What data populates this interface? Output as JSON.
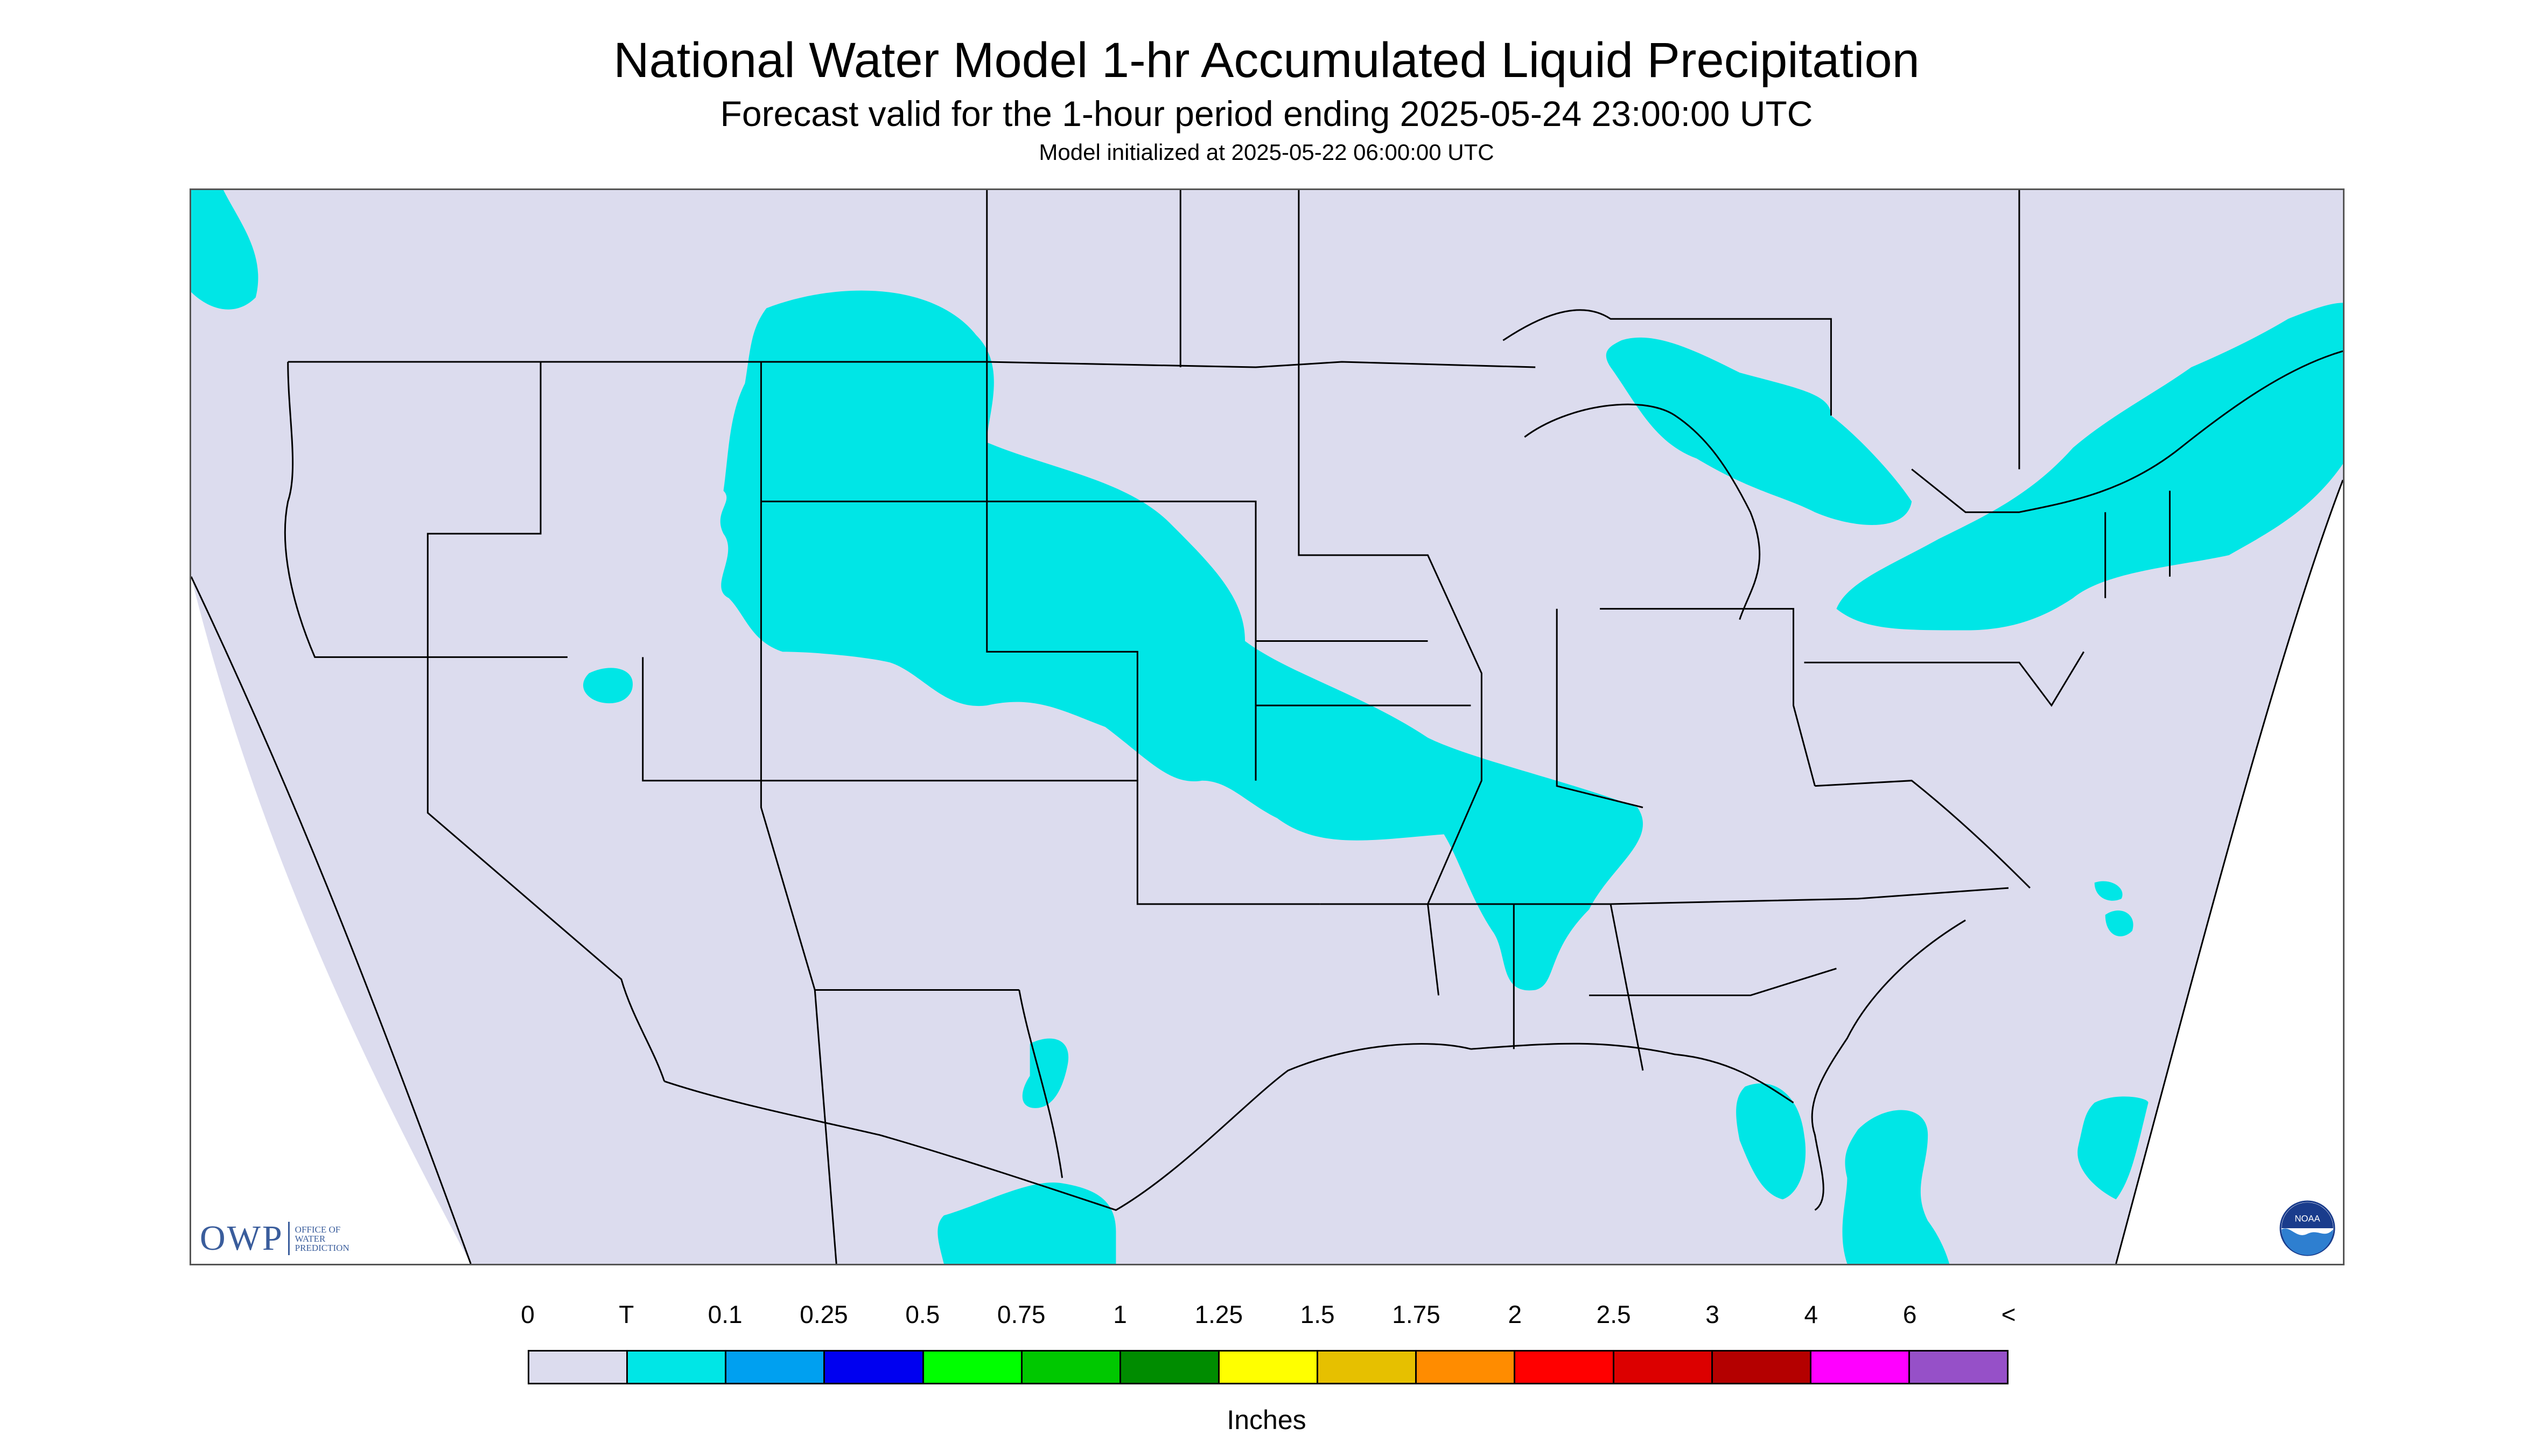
{
  "title": "National Water Model 1-hr Accumulated Liquid Precipitation",
  "subtitle": "Forecast valid for the 1-hour period ending 2025-05-24 23:00:00 UTC",
  "model_init": "Model initialized at 2025-05-22 06:00:00 UTC",
  "logos": {
    "owp_mark": "OWP",
    "owp_text": [
      "OFFICE OF",
      "WATER",
      "PREDICTION"
    ],
    "noaa_text": "NOAA"
  },
  "map": {
    "icon": "united-states-map",
    "colors": {
      "domain_fill": "#dcdcee",
      "precip_fill": "#00e6e6",
      "boundary_lines": "#000000",
      "outside_domain": "#ffffff"
    }
  },
  "legend": {
    "labels": [
      "0",
      "T",
      "0.1",
      "0.25",
      "0.5",
      "0.75",
      "1",
      "1.25",
      "1.5",
      "1.75",
      "2",
      "2.5",
      "3",
      "4",
      "6",
      "<"
    ],
    "colors": [
      "#dcdcee",
      "#00e6e6",
      "#00a0f0",
      "#0000f0",
      "#00ff00",
      "#00c800",
      "#008c00",
      "#ffff00",
      "#e6c000",
      "#ff8c00",
      "#ff0000",
      "#dc0000",
      "#b40000",
      "#ff00ff",
      "#9650c8"
    ],
    "units": "Inches"
  }
}
